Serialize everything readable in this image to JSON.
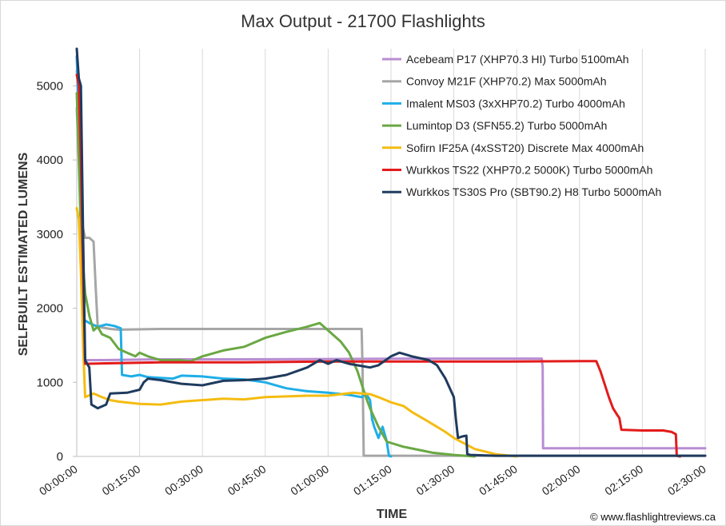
{
  "chart_data": {
    "type": "line",
    "title": "Max Output - 21700 Flashlights",
    "xlabel": "TIME",
    "ylabel": "SELFBUILT ESTIMATED LUMENS",
    "x_unit": "minutes",
    "xlim": [
      0,
      150
    ],
    "ylim": [
      0,
      5500
    ],
    "yticks": [
      0,
      1000,
      2000,
      3000,
      4000,
      5000
    ],
    "ytick_labels": [
      "0",
      "1000",
      "2000",
      "3000",
      "4000",
      "5000"
    ],
    "xticks": [
      0,
      15,
      30,
      45,
      60,
      75,
      90,
      105,
      120,
      135,
      150
    ],
    "xtick_labels": [
      "00:00:00",
      "00:15:00",
      "00:30:00",
      "00:45:00",
      "01:00:00",
      "01:15:00",
      "01:30:00",
      "01:45:00",
      "02:00:00",
      "02:15:00",
      "02:30:00"
    ],
    "grid": "vertical",
    "legend_position": "top-right",
    "copyright": "© www.flashlightreviews.ca",
    "series": [
      {
        "name": "Acebeam P17 (XHP70.3 HI) Turbo 5100mAh",
        "color": "#b88dd2",
        "points": [
          [
            0,
            5200
          ],
          [
            0.5,
            5000
          ],
          [
            1,
            3000
          ],
          [
            1.5,
            1800
          ],
          [
            2,
            1300
          ],
          [
            5,
            1300
          ],
          [
            20,
            1310
          ],
          [
            40,
            1310
          ],
          [
            60,
            1315
          ],
          [
            80,
            1320
          ],
          [
            100,
            1320
          ],
          [
            111,
            1320
          ],
          [
            111.2,
            1200
          ],
          [
            111.3,
            110
          ],
          [
            120,
            110
          ],
          [
            150,
            110
          ]
        ]
      },
      {
        "name": "Convoy M21F (XHP70.2) Max 5000mAh",
        "color": "#a6a6a6",
        "points": [
          [
            0,
            4700
          ],
          [
            0.5,
            4000
          ],
          [
            1,
            3200
          ],
          [
            2,
            2950
          ],
          [
            3,
            2950
          ],
          [
            4,
            2900
          ],
          [
            4.5,
            2300
          ],
          [
            5,
            1750
          ],
          [
            8,
            1720
          ],
          [
            10,
            1710
          ],
          [
            20,
            1720
          ],
          [
            40,
            1720
          ],
          [
            60,
            1720
          ],
          [
            68,
            1720
          ],
          [
            68.2,
            1200
          ],
          [
            68.5,
            10
          ],
          [
            150,
            10
          ]
        ]
      },
      {
        "name": "Imalent MS03 (3xXHP70.2) Turbo 4000mAh",
        "color": "#1faee8",
        "points": [
          [
            0,
            5400
          ],
          [
            0.5,
            4500
          ],
          [
            1,
            3000
          ],
          [
            1.5,
            1850
          ],
          [
            3,
            1800
          ],
          [
            5,
            1750
          ],
          [
            7,
            1780
          ],
          [
            9,
            1760
          ],
          [
            10.5,
            1730
          ],
          [
            10.8,
            1100
          ],
          [
            13,
            1080
          ],
          [
            15,
            1100
          ],
          [
            17,
            1070
          ],
          [
            20,
            1060
          ],
          [
            23,
            1050
          ],
          [
            25,
            1090
          ],
          [
            30,
            1080
          ],
          [
            35,
            1050
          ],
          [
            40,
            1040
          ],
          [
            45,
            1000
          ],
          [
            50,
            920
          ],
          [
            55,
            880
          ],
          [
            60,
            860
          ],
          [
            65,
            830
          ],
          [
            68,
            800
          ],
          [
            69,
            850
          ],
          [
            70,
            760
          ],
          [
            70.5,
            500
          ],
          [
            71,
            400
          ],
          [
            72,
            250
          ],
          [
            73,
            400
          ],
          [
            74,
            200
          ],
          [
            74.5,
            10
          ],
          [
            75,
            0
          ]
        ]
      },
      {
        "name": "Lumintop D3 (SFN55.2) Turbo 5000mAh",
        "color": "#6aa843",
        "points": [
          [
            0,
            4900
          ],
          [
            0.5,
            4000
          ],
          [
            1,
            3000
          ],
          [
            2,
            2200
          ],
          [
            3,
            1900
          ],
          [
            4,
            1700
          ],
          [
            5,
            1750
          ],
          [
            6,
            1650
          ],
          [
            8,
            1600
          ],
          [
            10,
            1450
          ],
          [
            12,
            1400
          ],
          [
            14,
            1350
          ],
          [
            15,
            1400
          ],
          [
            17,
            1350
          ],
          [
            20,
            1300
          ],
          [
            25,
            1300
          ],
          [
            27,
            1280
          ],
          [
            30,
            1350
          ],
          [
            35,
            1430
          ],
          [
            40,
            1480
          ],
          [
            45,
            1600
          ],
          [
            50,
            1680
          ],
          [
            55,
            1750
          ],
          [
            58,
            1800
          ],
          [
            60,
            1700
          ],
          [
            63,
            1550
          ],
          [
            65,
            1400
          ],
          [
            67,
            1150
          ],
          [
            69,
            800
          ],
          [
            70,
            650
          ],
          [
            72,
            400
          ],
          [
            74,
            200
          ],
          [
            78,
            130
          ],
          [
            85,
            50
          ],
          [
            90,
            20
          ],
          [
            95,
            0
          ]
        ]
      },
      {
        "name": "Sofirn IF25A (4xSST20) Discrete Max 4000mAh",
        "color": "#f4bc12",
        "points": [
          [
            0,
            3350
          ],
          [
            0.5,
            3200
          ],
          [
            1,
            2500
          ],
          [
            1.5,
            1500
          ],
          [
            2,
            800
          ],
          [
            4,
            850
          ],
          [
            6,
            800
          ],
          [
            8,
            760
          ],
          [
            10,
            740
          ],
          [
            15,
            710
          ],
          [
            20,
            700
          ],
          [
            25,
            740
          ],
          [
            30,
            760
          ],
          [
            35,
            780
          ],
          [
            40,
            770
          ],
          [
            45,
            800
          ],
          [
            50,
            810
          ],
          [
            55,
            820
          ],
          [
            60,
            820
          ],
          [
            63,
            840
          ],
          [
            66,
            860
          ],
          [
            68,
            850
          ],
          [
            70,
            840
          ],
          [
            72,
            800
          ],
          [
            75,
            730
          ],
          [
            78,
            680
          ],
          [
            80,
            600
          ],
          [
            83,
            500
          ],
          [
            86,
            400
          ],
          [
            88,
            330
          ],
          [
            90,
            250
          ],
          [
            95,
            100
          ],
          [
            100,
            30
          ],
          [
            105,
            0
          ]
        ]
      },
      {
        "name": "Wurkkos TS22 (XHP70.2 5000K) Turbo 5000mAh",
        "color": "#e31b1b",
        "points": [
          [
            0,
            5150
          ],
          [
            0.5,
            5000
          ],
          [
            1,
            4000
          ],
          [
            1.5,
            2500
          ],
          [
            2,
            1250
          ],
          [
            10,
            1260
          ],
          [
            20,
            1270
          ],
          [
            40,
            1270
          ],
          [
            60,
            1280
          ],
          [
            80,
            1280
          ],
          [
            100,
            1280
          ],
          [
            120,
            1285
          ],
          [
            124,
            1285
          ],
          [
            125,
            1150
          ],
          [
            127,
            800
          ],
          [
            128,
            650
          ],
          [
            129,
            560
          ],
          [
            129.5,
            520
          ],
          [
            130,
            360
          ],
          [
            135,
            350
          ],
          [
            140,
            350
          ],
          [
            142,
            330
          ],
          [
            143,
            300
          ],
          [
            143.2,
            10
          ],
          [
            144,
            0
          ]
        ]
      },
      {
        "name": "Wurkkos TS30S Pro (SBT90.2) H8 Turbo 5000mAh",
        "color": "#1f3b5e",
        "points": [
          [
            0,
            5500
          ],
          [
            0.5,
            5100
          ],
          [
            1,
            5000
          ],
          [
            1.5,
            3000
          ],
          [
            2,
            1300
          ],
          [
            3,
            1200
          ],
          [
            3.5,
            700
          ],
          [
            5,
            650
          ],
          [
            7,
            700
          ],
          [
            8,
            850
          ],
          [
            12,
            860
          ],
          [
            15,
            900
          ],
          [
            16,
            1000
          ],
          [
            17,
            1050
          ],
          [
            20,
            1030
          ],
          [
            25,
            980
          ],
          [
            30,
            960
          ],
          [
            35,
            1020
          ],
          [
            40,
            1030
          ],
          [
            45,
            1050
          ],
          [
            50,
            1100
          ],
          [
            55,
            1200
          ],
          [
            58,
            1300
          ],
          [
            60,
            1250
          ],
          [
            62,
            1300
          ],
          [
            65,
            1250
          ],
          [
            70,
            1200
          ],
          [
            72,
            1230
          ],
          [
            75,
            1350
          ],
          [
            77,
            1400
          ],
          [
            80,
            1350
          ],
          [
            84,
            1300
          ],
          [
            86,
            1230
          ],
          [
            88,
            1050
          ],
          [
            90,
            800
          ],
          [
            90.5,
            500
          ],
          [
            91,
            250
          ],
          [
            92,
            270
          ],
          [
            93,
            280
          ],
          [
            93.2,
            30
          ],
          [
            94,
            20
          ],
          [
            100,
            10
          ],
          [
            150,
            10
          ]
        ]
      }
    ]
  }
}
